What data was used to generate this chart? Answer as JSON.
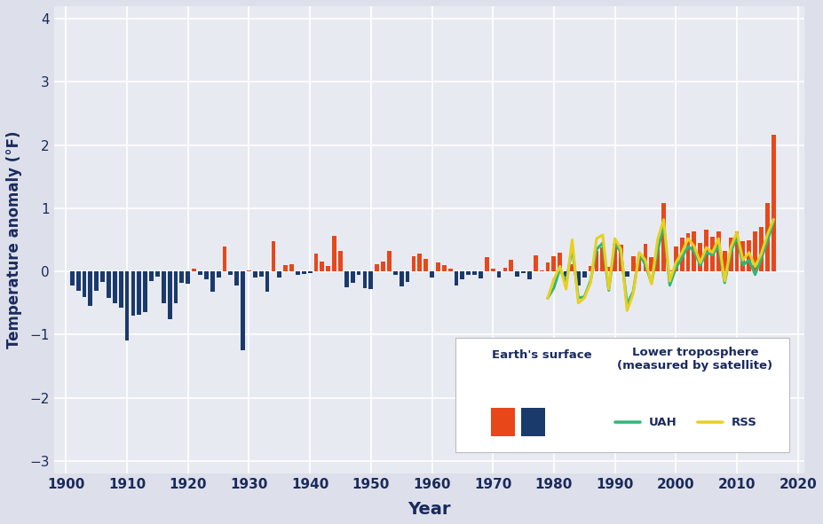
{
  "ylabel": "Temperature anomaly (°F)",
  "xlabel": "Year",
  "bg_color": "#e8eaf2",
  "fig_bg_color": "#dde0ea",
  "bar_color_pos": "#e8471a",
  "bar_color_neg": "#1a3a6b",
  "uah_color": "#2db87a",
  "rss_color": "#e8d020",
  "ylim": [
    -3.2,
    4.2
  ],
  "xlim": [
    1898,
    2021
  ],
  "yticks": [
    -3,
    -2,
    -1,
    0,
    1,
    2,
    3,
    4
  ],
  "xticks": [
    1900,
    1910,
    1920,
    1930,
    1940,
    1950,
    1960,
    1970,
    1980,
    1990,
    2000,
    2010,
    2020
  ],
  "surface_years": [
    1901,
    1902,
    1903,
    1904,
    1905,
    1906,
    1907,
    1908,
    1909,
    1910,
    1911,
    1912,
    1913,
    1914,
    1915,
    1916,
    1917,
    1918,
    1919,
    1920,
    1921,
    1922,
    1923,
    1924,
    1925,
    1926,
    1927,
    1928,
    1929,
    1930,
    1931,
    1932,
    1933,
    1934,
    1935,
    1936,
    1937,
    1938,
    1939,
    1940,
    1941,
    1942,
    1943,
    1944,
    1945,
    1946,
    1947,
    1948,
    1949,
    1950,
    1951,
    1952,
    1953,
    1954,
    1955,
    1956,
    1957,
    1958,
    1959,
    1960,
    1961,
    1962,
    1963,
    1964,
    1965,
    1966,
    1967,
    1968,
    1969,
    1970,
    1971,
    1972,
    1973,
    1974,
    1975,
    1976,
    1977,
    1978,
    1979,
    1980,
    1981,
    1982,
    1983,
    1984,
    1985,
    1986,
    1987,
    1988,
    1989,
    1990,
    1991,
    1992,
    1993,
    1994,
    1995,
    1996,
    1997,
    1998,
    1999,
    2000,
    2001,
    2002,
    2003,
    2004,
    2005,
    2006,
    2007,
    2008,
    2009,
    2010,
    2011,
    2012,
    2013,
    2014,
    2015,
    2016
  ],
  "surface_values": [
    -0.22,
    -0.3,
    -0.4,
    -0.54,
    -0.3,
    -0.16,
    -0.42,
    -0.5,
    -0.58,
    -1.1,
    -0.7,
    -0.68,
    -0.64,
    -0.15,
    -0.08,
    -0.5,
    -0.76,
    -0.5,
    -0.18,
    -0.2,
    0.05,
    -0.05,
    -0.12,
    -0.32,
    -0.1,
    0.4,
    -0.05,
    -0.22,
    -1.25,
    0.02,
    -0.1,
    -0.08,
    -0.32,
    0.48,
    -0.1,
    0.1,
    0.12,
    -0.06,
    -0.04,
    -0.02,
    0.28,
    0.15,
    0.08,
    0.56,
    0.33,
    -0.25,
    -0.18,
    -0.06,
    -0.26,
    -0.28,
    0.12,
    0.15,
    0.32,
    -0.05,
    -0.24,
    -0.16,
    0.24,
    0.28,
    0.2,
    -0.1,
    0.14,
    0.1,
    0.04,
    -0.22,
    -0.12,
    -0.06,
    -0.06,
    -0.11,
    0.22,
    0.04,
    -0.1,
    0.06,
    0.18,
    -0.08,
    -0.03,
    -0.12,
    0.25,
    0.02,
    0.14,
    0.24,
    0.3,
    -0.08,
    0.12,
    -0.22,
    -0.1,
    0.08,
    0.32,
    0.38,
    0.07,
    0.44,
    0.42,
    -0.08,
    0.24,
    0.28,
    0.44,
    0.22,
    0.4,
    1.08,
    0.02,
    0.4,
    0.54,
    0.6,
    0.63,
    0.45,
    0.66,
    0.55,
    0.63,
    0.33,
    0.53,
    0.63,
    0.48,
    0.5,
    0.63,
    0.7,
    1.08,
    2.16
  ],
  "uah_years": [
    1979,
    1980,
    1981,
    1982,
    1983,
    1984,
    1985,
    1986,
    1987,
    1988,
    1989,
    1990,
    1991,
    1992,
    1993,
    1994,
    1995,
    1996,
    1997,
    1998,
    1999,
    2000,
    2001,
    2002,
    2003,
    2004,
    2005,
    2006,
    2007,
    2008,
    2009,
    2010,
    2011,
    2012,
    2013,
    2014,
    2015,
    2016
  ],
  "uah_values": [
    -0.42,
    -0.26,
    0.05,
    -0.18,
    0.38,
    -0.42,
    -0.4,
    -0.15,
    0.35,
    0.45,
    -0.3,
    0.45,
    0.3,
    -0.52,
    -0.32,
    0.28,
    0.1,
    -0.18,
    0.32,
    0.75,
    -0.22,
    0.05,
    0.22,
    0.4,
    0.32,
    0.1,
    0.3,
    0.26,
    0.4,
    -0.18,
    0.3,
    0.55,
    0.1,
    0.18,
    -0.05,
    0.2,
    0.48,
    0.78
  ],
  "rss_years": [
    1979,
    1980,
    1981,
    1982,
    1983,
    1984,
    1985,
    1986,
    1987,
    1988,
    1989,
    1990,
    1991,
    1992,
    1993,
    1994,
    1995,
    1996,
    1997,
    1998,
    1999,
    2000,
    2001,
    2002,
    2003,
    2004,
    2005,
    2006,
    2007,
    2008,
    2009,
    2010,
    2011,
    2012,
    2013,
    2014,
    2015,
    2016
  ],
  "rss_values": [
    -0.42,
    -0.12,
    0.08,
    -0.28,
    0.5,
    -0.5,
    -0.42,
    -0.18,
    0.52,
    0.58,
    -0.28,
    0.52,
    0.35,
    -0.62,
    -0.35,
    0.3,
    0.18,
    -0.2,
    0.5,
    0.82,
    -0.15,
    0.14,
    0.3,
    0.52,
    0.4,
    0.14,
    0.38,
    0.3,
    0.52,
    -0.15,
    0.38,
    0.62,
    0.18,
    0.3,
    0.08,
    0.28,
    0.58,
    0.82
  ],
  "legend_label_surface": "Earth's surface",
  "legend_label_lower": "Lower troposphere\n(measured by satellite)",
  "legend_label_uah": "UAH",
  "legend_label_rss": "RSS",
  "bar_width": 0.7
}
